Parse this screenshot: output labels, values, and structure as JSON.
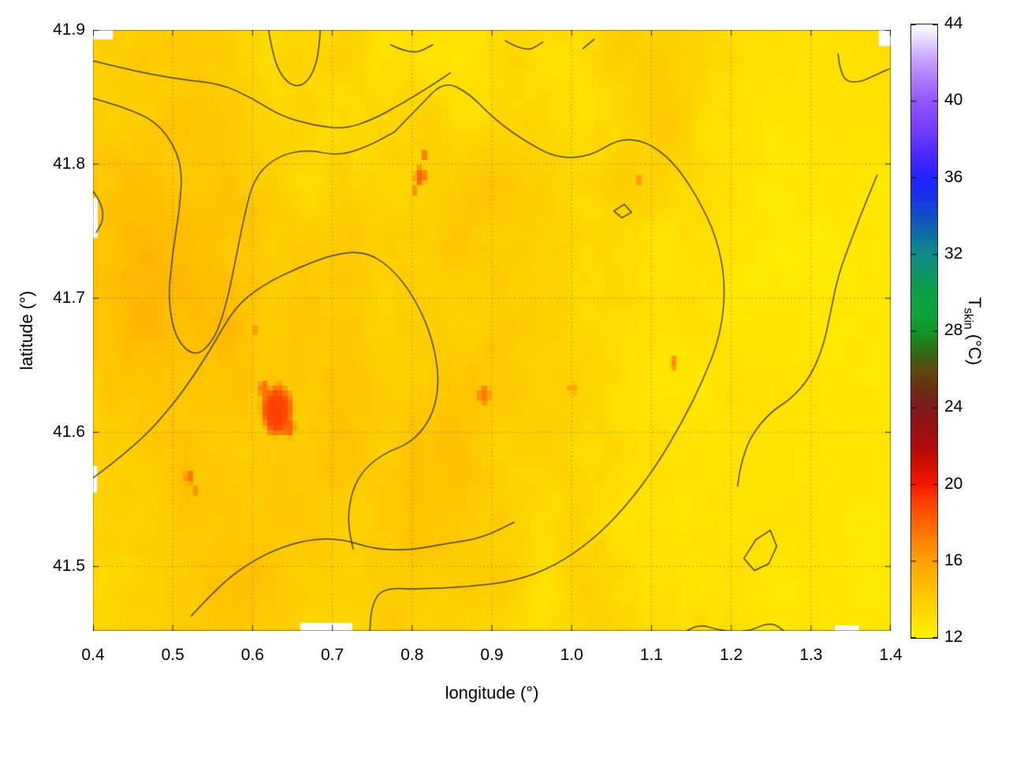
{
  "figure": {
    "xlabel": "longitude (°)",
    "ylabel": "latitude (°)",
    "colorbar_label_main": "T",
    "colorbar_label_sub": "skin",
    "colorbar_label_unit": " (°C)"
  },
  "chart_data": {
    "type": "heatmap",
    "title": "",
    "xlabel": "longitude (°)",
    "ylabel": "latitude (°)",
    "x_range": [
      0.4,
      1.4
    ],
    "y_range": [
      41.452,
      41.9
    ],
    "grid": {
      "color": "rgba(110,110,110,0.75)",
      "style": "dotted"
    },
    "contour_color": "#2e2e2e",
    "x_ticks": [
      {
        "v": 0.4,
        "label": "0.4"
      },
      {
        "v": 0.5,
        "label": "0.5"
      },
      {
        "v": 0.6,
        "label": "0.6"
      },
      {
        "v": 0.7,
        "label": "0.7"
      },
      {
        "v": 0.8,
        "label": "0.8"
      },
      {
        "v": 0.9,
        "label": "0.9"
      },
      {
        "v": 1.0,
        "label": "1.0"
      },
      {
        "v": 1.1,
        "label": "1.1"
      },
      {
        "v": 1.2,
        "label": "1.2"
      },
      {
        "v": 1.3,
        "label": "1.3"
      },
      {
        "v": 1.4,
        "label": "1.4"
      }
    ],
    "y_ticks": [
      {
        "v": 41.5,
        "label": "41.5"
      },
      {
        "v": 41.6,
        "label": "41.6"
      },
      {
        "v": 41.7,
        "label": "41.7"
      },
      {
        "v": 41.8,
        "label": "41.8"
      },
      {
        "v": 41.9,
        "label": "41.9"
      }
    ],
    "colorbar": {
      "label": "Tskin (°C)",
      "range": [
        12,
        44
      ],
      "ticks": [
        {
          "v": 12,
          "label": "12"
        },
        {
          "v": 16,
          "label": "16"
        },
        {
          "v": 20,
          "label": "20"
        },
        {
          "v": 24,
          "label": "24"
        },
        {
          "v": 28,
          "label": "28"
        },
        {
          "v": 32,
          "label": "32"
        },
        {
          "v": 36,
          "label": "36"
        },
        {
          "v": 40,
          "label": "40"
        },
        {
          "v": 44,
          "label": "44"
        }
      ],
      "stops": [
        [
          12,
          "#fff200"
        ],
        [
          13,
          "#ffe000"
        ],
        [
          14,
          "#ffcc00"
        ],
        [
          15,
          "#ffb800"
        ],
        [
          16,
          "#ffa000"
        ],
        [
          17,
          "#ff8400"
        ],
        [
          18,
          "#ff6400"
        ],
        [
          19,
          "#ff4000"
        ],
        [
          20,
          "#f51800"
        ],
        [
          21,
          "#d21000"
        ],
        [
          22,
          "#b00b0b"
        ],
        [
          23,
          "#961212"
        ],
        [
          24,
          "#7d1a1a"
        ],
        [
          25,
          "#6b2f14"
        ],
        [
          26,
          "#5c4a10"
        ],
        [
          27,
          "#2e6e14"
        ],
        [
          28,
          "#12962a"
        ],
        [
          29,
          "#0fa53c"
        ],
        [
          30,
          "#0f9f46"
        ],
        [
          31,
          "#0f9464"
        ],
        [
          32,
          "#0e8c86"
        ],
        [
          33,
          "#0e6fa0"
        ],
        [
          34,
          "#1150c8"
        ],
        [
          35,
          "#1832e6"
        ],
        [
          36,
          "#2222ff"
        ],
        [
          37,
          "#4427ff"
        ],
        [
          38,
          "#6633ff"
        ],
        [
          39,
          "#7e44ff"
        ],
        [
          40,
          "#9257ff"
        ],
        [
          41,
          "#a877ff"
        ],
        [
          42,
          "#c29aff"
        ],
        [
          43,
          "#e0cbff"
        ],
        [
          44,
          "#ffffff"
        ]
      ]
    },
    "field": {
      "base": 13.7,
      "clamp": [
        12.35,
        19.3
      ],
      "octaves": [
        {
          "scale": 0.14,
          "amp": 0.55
        },
        {
          "scale": 0.05,
          "amp": 0.35
        },
        {
          "scale": 0.018,
          "amp": 0.22
        }
      ],
      "east_start": 1.05,
      "east_width": 0.35,
      "east_drop": 0.45,
      "east_noise_damp": 0.55,
      "seed": 1234,
      "edge_seed": 999
    },
    "regions": [
      {
        "lon": 0.6,
        "lat": 41.57,
        "sx": 0.13,
        "sy": 0.07,
        "amp": 0.65
      },
      {
        "lon": 0.52,
        "lat": 41.8,
        "sx": 0.1,
        "sy": 0.06,
        "amp": 0.45
      },
      {
        "lon": 0.86,
        "lat": 41.77,
        "sx": 0.09,
        "sy": 0.05,
        "amp": 0.5
      },
      {
        "lon": 0.75,
        "lat": 41.65,
        "sx": 0.18,
        "sy": 0.1,
        "amp": 0.35
      },
      {
        "lon": 0.45,
        "lat": 41.68,
        "sx": 0.06,
        "sy": 0.05,
        "amp": 0.45
      },
      {
        "lon": 1.32,
        "lat": 41.6,
        "sx": 0.16,
        "sy": 0.22,
        "amp": -0.7
      },
      {
        "lon": 1.05,
        "lat": 41.47,
        "sx": 0.2,
        "sy": 0.07,
        "amp": -0.35
      },
      {
        "lon": 0.95,
        "lat": 41.885,
        "sx": 0.15,
        "sy": 0.05,
        "amp": -0.3
      },
      {
        "lon": 0.42,
        "lat": 41.47,
        "sx": 0.08,
        "sy": 0.06,
        "amp": -0.3
      }
    ],
    "hotspots": [
      {
        "lon": 0.63,
        "lat": 41.617,
        "r": 0.021,
        "peak": 19.0
      },
      {
        "lon": 0.645,
        "lat": 41.604,
        "r": 0.009,
        "peak": 18.0
      },
      {
        "lon": 0.615,
        "lat": 41.633,
        "r": 0.008,
        "peak": 17.6
      },
      {
        "lon": 0.81,
        "lat": 41.791,
        "r": 0.008,
        "peak": 18.0
      },
      {
        "lon": 0.817,
        "lat": 41.806,
        "r": 0.004,
        "peak": 17.2
      },
      {
        "lon": 0.803,
        "lat": 41.78,
        "r": 0.004,
        "peak": 16.6
      },
      {
        "lon": 0.52,
        "lat": 41.567,
        "r": 0.006,
        "peak": 17.4
      },
      {
        "lon": 0.527,
        "lat": 41.557,
        "r": 0.004,
        "peak": 16.6
      },
      {
        "lon": 0.89,
        "lat": 41.628,
        "r": 0.008,
        "peak": 17.2
      },
      {
        "lon": 1.128,
        "lat": 41.652,
        "r": 0.005,
        "peak": 16.8
      },
      {
        "lon": 0.601,
        "lat": 41.676,
        "r": 0.004,
        "peak": 16.4
      },
      {
        "lon": 1.0,
        "lat": 41.633,
        "r": 0.005,
        "peak": 16.0
      },
      {
        "lon": 1.084,
        "lat": 41.788,
        "r": 0.003,
        "peak": 16.2
      }
    ],
    "contours": [
      [
        [
          0.4,
          41.877
        ],
        [
          0.455,
          41.869
        ],
        [
          0.51,
          41.863
        ],
        [
          0.56,
          41.86
        ],
        [
          0.6,
          41.849
        ],
        [
          0.635,
          41.836
        ],
        [
          0.675,
          41.829
        ],
        [
          0.715,
          41.826
        ],
        [
          0.75,
          41.833
        ],
        [
          0.787,
          41.845
        ],
        [
          0.82,
          41.857
        ],
        [
          0.848,
          41.868
        ]
      ],
      [
        [
          0.4,
          41.849
        ],
        [
          0.448,
          41.841
        ],
        [
          0.487,
          41.828
        ],
        [
          0.512,
          41.801
        ],
        [
          0.509,
          41.768
        ],
        [
          0.499,
          41.731
        ],
        [
          0.494,
          41.696
        ],
        [
          0.505,
          41.668
        ],
        [
          0.529,
          41.656
        ],
        [
          0.552,
          41.669
        ],
        [
          0.566,
          41.693
        ],
        [
          0.577,
          41.723
        ],
        [
          0.589,
          41.76
        ],
        [
          0.602,
          41.79
        ],
        [
          0.631,
          41.806
        ],
        [
          0.669,
          41.811
        ],
        [
          0.707,
          41.806
        ],
        [
          0.744,
          41.813
        ],
        [
          0.778,
          41.824
        ]
      ],
      [
        [
          0.778,
          41.824
        ],
        [
          0.809,
          41.843
        ],
        [
          0.84,
          41.862
        ],
        [
          0.871,
          41.853
        ],
        [
          0.904,
          41.833
        ],
        [
          0.944,
          41.816
        ],
        [
          0.984,
          41.804
        ],
        [
          1.024,
          41.806
        ],
        [
          1.059,
          41.819
        ],
        [
          1.094,
          41.817
        ],
        [
          1.129,
          41.801
        ],
        [
          1.159,
          41.774
        ],
        [
          1.182,
          41.745
        ],
        [
          1.193,
          41.711
        ],
        [
          1.187,
          41.673
        ],
        [
          1.165,
          41.639
        ],
        [
          1.138,
          41.607
        ],
        [
          1.105,
          41.574
        ],
        [
          1.067,
          41.544
        ],
        [
          1.025,
          41.519
        ],
        [
          0.978,
          41.5
        ],
        [
          0.928,
          41.489
        ],
        [
          0.872,
          41.485
        ],
        [
          0.812,
          41.483
        ],
        [
          0.762,
          41.484
        ],
        [
          0.749,
          41.47
        ],
        [
          0.747,
          41.452
        ]
      ],
      [
        [
          0.4,
          41.566
        ],
        [
          0.452,
          41.589
        ],
        [
          0.503,
          41.622
        ],
        [
          0.546,
          41.66
        ],
        [
          0.577,
          41.693
        ],
        [
          0.613,
          41.71
        ],
        [
          0.658,
          41.723
        ],
        [
          0.703,
          41.733
        ],
        [
          0.744,
          41.735
        ],
        [
          0.781,
          41.719
        ],
        [
          0.811,
          41.692
        ],
        [
          0.829,
          41.662
        ],
        [
          0.834,
          41.633
        ],
        [
          0.823,
          41.609
        ],
        [
          0.798,
          41.592
        ],
        [
          0.767,
          41.585
        ],
        [
          0.74,
          41.573
        ],
        [
          0.724,
          41.556
        ],
        [
          0.719,
          41.533
        ],
        [
          0.726,
          41.513
        ]
      ],
      [
        [
          0.523,
          41.463
        ],
        [
          0.557,
          41.485
        ],
        [
          0.594,
          41.502
        ],
        [
          0.63,
          41.513
        ],
        [
          0.669,
          41.52
        ],
        [
          0.71,
          41.521
        ],
        [
          0.752,
          41.513
        ],
        [
          0.796,
          41.512
        ],
        [
          0.842,
          41.517
        ],
        [
          0.887,
          41.521
        ],
        [
          0.928,
          41.533
        ]
      ],
      [
        [
          0.62,
          41.9
        ],
        [
          0.626,
          41.879
        ],
        [
          0.639,
          41.863
        ],
        [
          0.656,
          41.857
        ],
        [
          0.672,
          41.863
        ],
        [
          0.682,
          41.879
        ],
        [
          0.685,
          41.9
        ]
      ],
      [
        [
          0.773,
          41.889
        ],
        [
          0.8,
          41.881
        ],
        [
          0.826,
          41.889
        ]
      ],
      [
        [
          0.917,
          41.892
        ],
        [
          0.942,
          41.883
        ],
        [
          0.964,
          41.891
        ]
      ],
      [
        [
          1.014,
          41.886
        ],
        [
          1.028,
          41.893
        ]
      ],
      [
        [
          1.334,
          41.882
        ],
        [
          1.337,
          41.864
        ],
        [
          1.357,
          41.86
        ],
        [
          1.383,
          41.867
        ],
        [
          1.398,
          41.871
        ]
      ],
      [
        [
          1.383,
          41.792
        ],
        [
          1.369,
          41.772
        ],
        [
          1.352,
          41.746
        ],
        [
          1.334,
          41.717
        ],
        [
          1.325,
          41.691
        ],
        [
          1.316,
          41.665
        ],
        [
          1.299,
          41.641
        ],
        [
          1.275,
          41.625
        ],
        [
          1.249,
          41.615
        ],
        [
          1.224,
          41.597
        ],
        [
          1.212,
          41.576
        ],
        [
          1.208,
          41.56
        ]
      ],
      [
        [
          1.216,
          41.506
        ],
        [
          1.231,
          41.52
        ],
        [
          1.249,
          41.527
        ],
        [
          1.257,
          41.515
        ],
        [
          1.247,
          41.502
        ],
        [
          1.229,
          41.497
        ],
        [
          1.216,
          41.506
        ]
      ],
      [
        [
          1.133,
          41.447
        ],
        [
          1.155,
          41.458
        ],
        [
          1.186,
          41.452
        ],
        [
          1.22,
          41.451
        ],
        [
          1.25,
          41.459
        ],
        [
          1.268,
          41.451
        ]
      ],
      [
        [
          0.4,
          41.78
        ],
        [
          0.411,
          41.771
        ],
        [
          0.413,
          41.758
        ],
        [
          0.404,
          41.749
        ]
      ],
      [
        [
          1.053,
          41.765
        ],
        [
          1.063,
          41.76
        ],
        [
          1.075,
          41.764
        ],
        [
          1.066,
          41.77
        ],
        [
          1.053,
          41.765
        ]
      ]
    ],
    "voids": [
      {
        "lon": 0.4,
        "lat": 41.9,
        "w": 0.025,
        "h": 0.007
      },
      {
        "lon": 0.4,
        "lat": 41.775,
        "w": 0.006,
        "h": 0.03
      },
      {
        "lon": 0.4,
        "lat": 41.575,
        "w": 0.005,
        "h": 0.02
      },
      {
        "lon": 0.66,
        "lat": 41.458,
        "w": 0.065,
        "h": 0.007
      },
      {
        "lon": 1.385,
        "lat": 41.9,
        "w": 0.015,
        "h": 0.012
      },
      {
        "lon": 1.33,
        "lat": 41.456,
        "w": 0.03,
        "h": 0.005
      }
    ]
  }
}
